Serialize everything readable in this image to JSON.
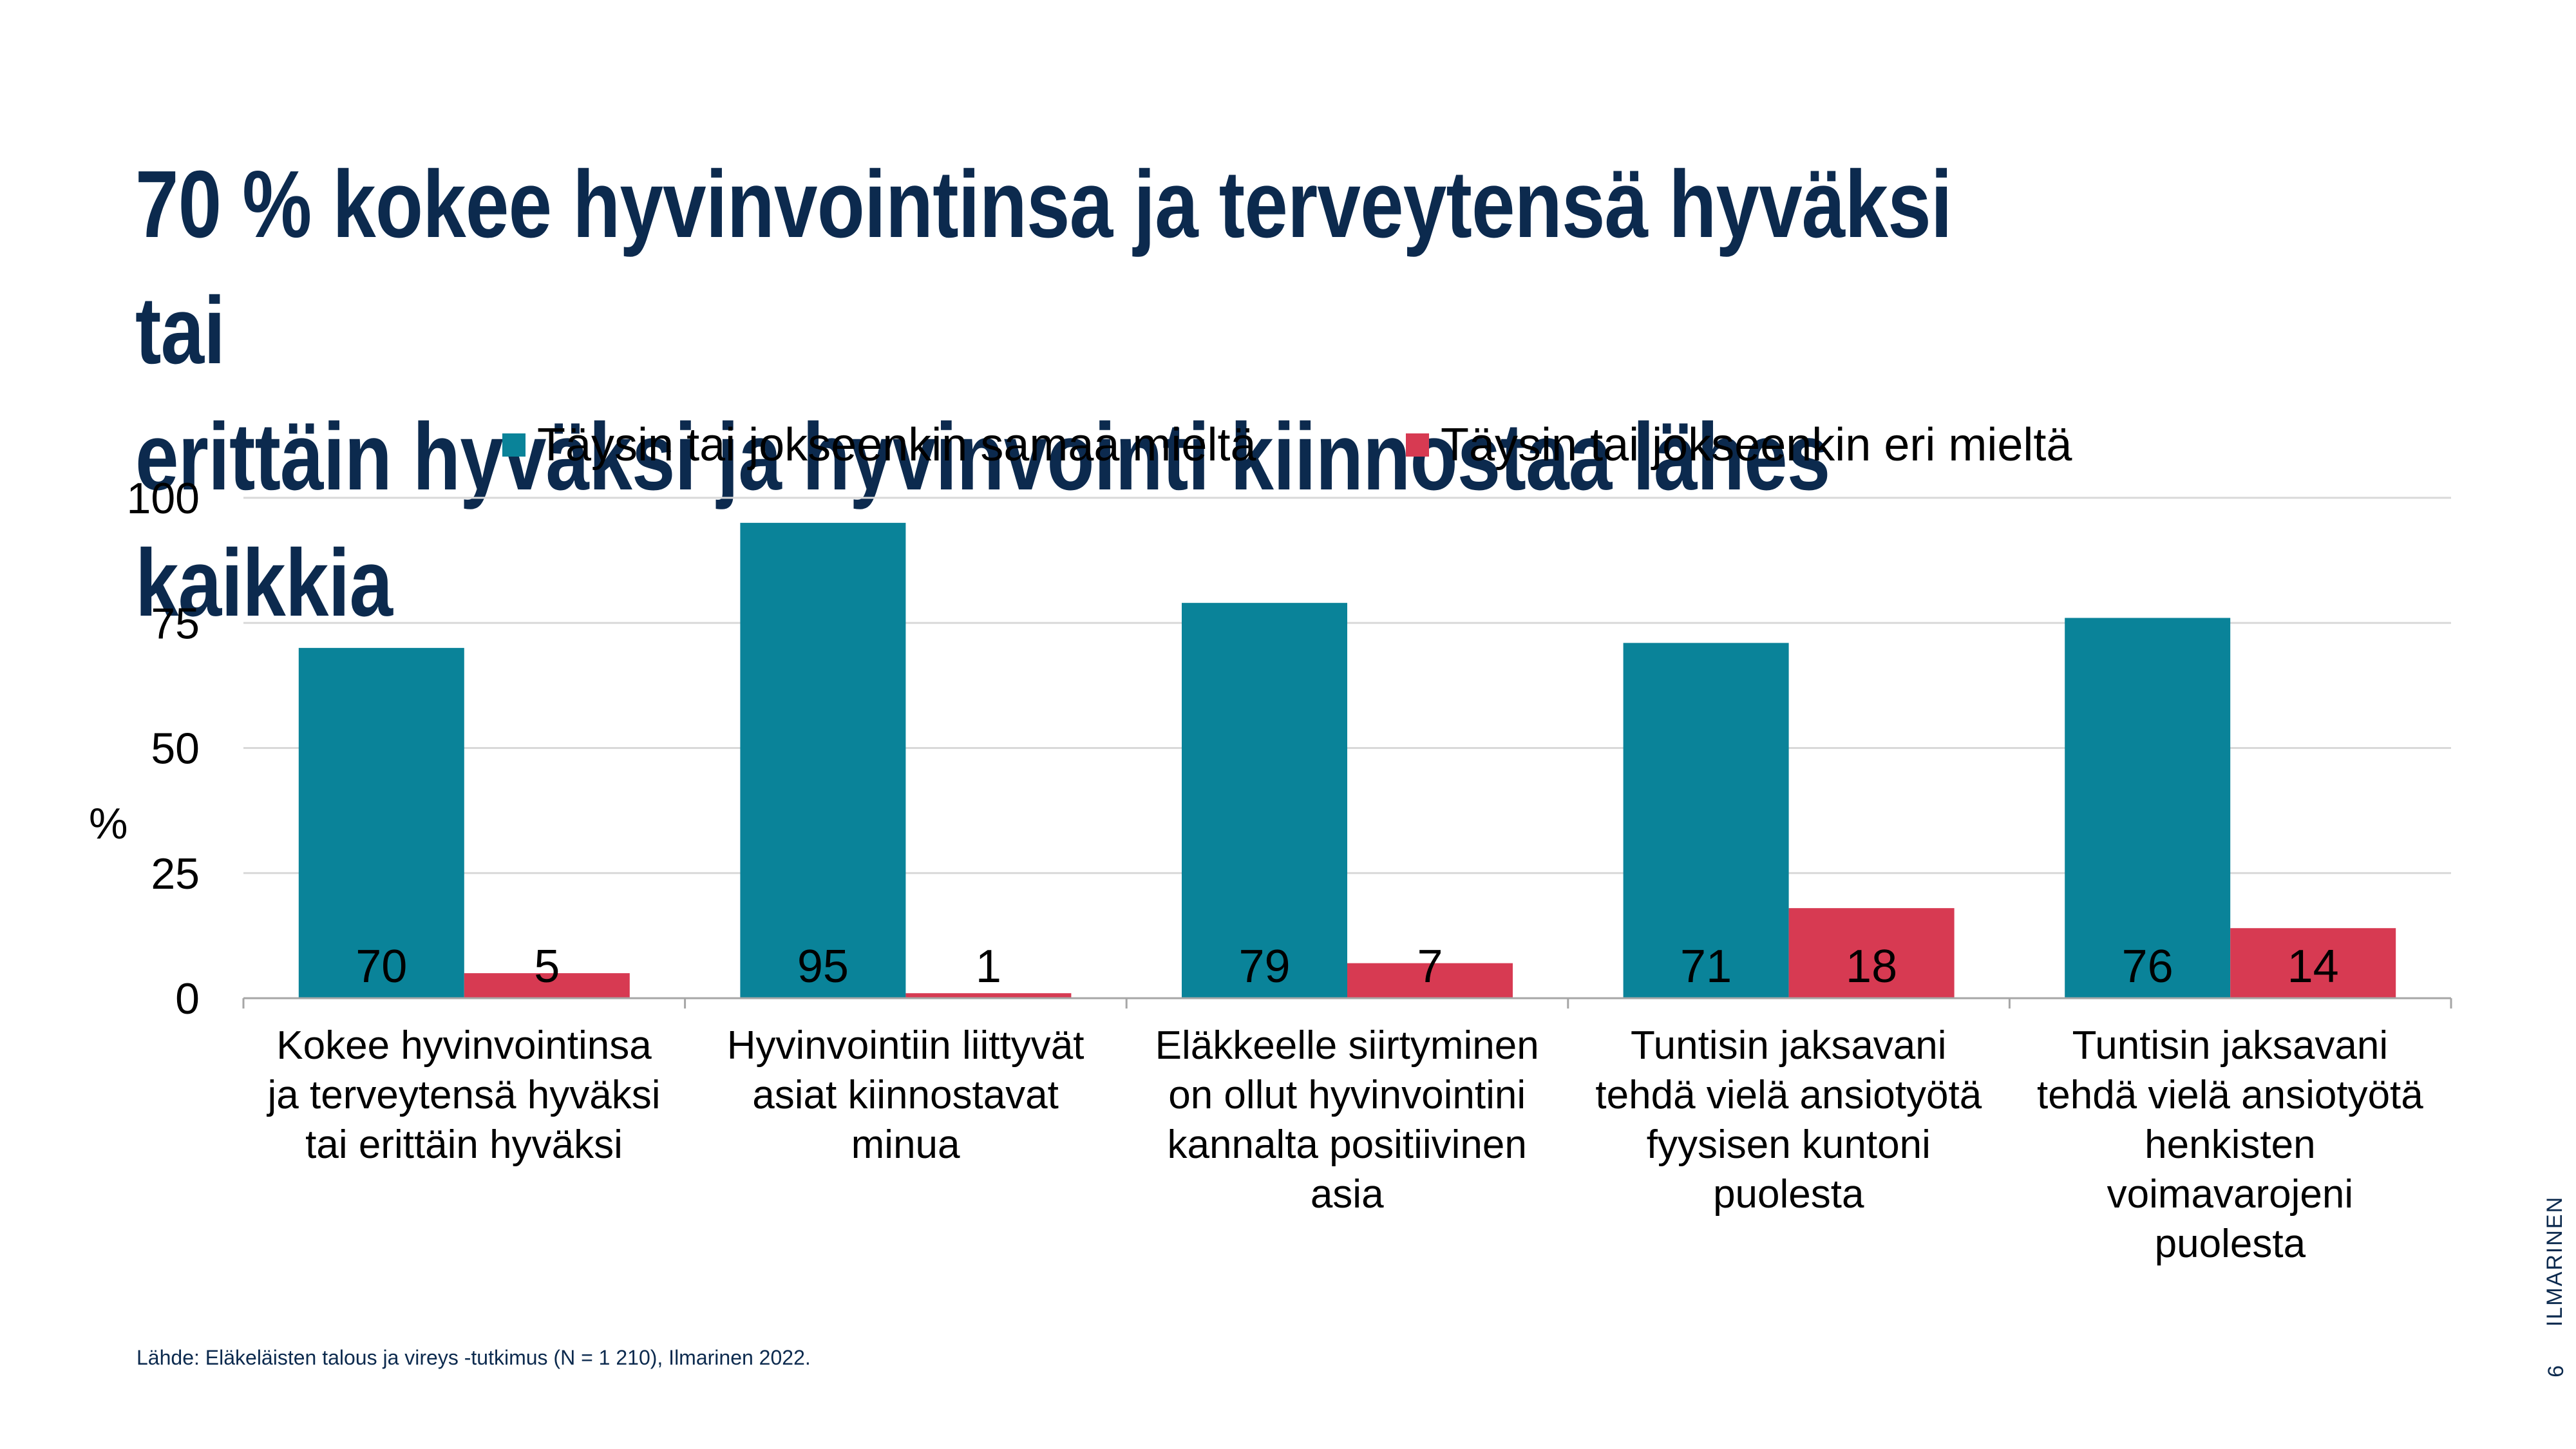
{
  "slide": {
    "title_line1": "70 % kokee hyvinvointinsa ja terveytensä hyväksi tai",
    "title_line2": "erittäin hyväksi ja hyvinvointi kiinnostaa lähes kaikkia",
    "source": "Lähde: Eläkeläisten talous ja vireys -tutkimus (N = 1 210), Ilmarinen 2022.",
    "brand": "ILMARINEN",
    "page_number": "6"
  },
  "colors": {
    "title": "#0c2a4e",
    "series_agree": "#0a8399",
    "series_disagree": "#d73a52",
    "grid": "#d9d9d9",
    "axis": "#a6a6a6"
  },
  "chart_data": {
    "type": "bar",
    "title": "",
    "xlabel": "",
    "ylabel": "%",
    "ylim": [
      0,
      100
    ],
    "yticks": [
      0,
      25,
      50,
      75,
      100
    ],
    "grid": true,
    "legend_position": "top",
    "categories": [
      "Kokee hyvinvointinsa ja terveytensä hyväksi tai erittäin hyväksi",
      "Hyvinvointiin liittyvät asiat kiinnostavat minua",
      "Eläkkeelle siirtyminen on ollut hyvinvointini kannalta positiivinen asia",
      "Tuntisin jaksavani tehdä vielä ansiotyötä fyysisen kuntoni puolesta",
      "Tuntisin jaksavani tehdä vielä ansiotyötä henkisten voimavarojeni puolesta"
    ],
    "category_lines": [
      [
        "Kokee hyvinvointinsa",
        "ja terveytensä hyväksi",
        "tai erittäin hyväksi"
      ],
      [
        "Hyvinvointiin liittyvät",
        "asiat kiinnostavat",
        "minua"
      ],
      [
        "Eläkkeelle siirtyminen",
        "on ollut hyvinvointini",
        "kannalta positiivinen",
        "asia"
      ],
      [
        "Tuntisin jaksavani",
        "tehdä vielä ansiotyötä",
        "fyysisen kuntoni",
        "puolesta"
      ],
      [
        "Tuntisin jaksavani",
        "tehdä vielä ansiotyötä",
        "henkisten",
        "voimavarojeni",
        "puolesta"
      ]
    ],
    "series": [
      {
        "name": "Täysin tai jokseenkin samaa mieltä",
        "color": "#0a8399",
        "values": [
          70,
          95,
          79,
          71,
          76
        ]
      },
      {
        "name": "Täysin tai jokseenkin eri mieltä",
        "color": "#d73a52",
        "values": [
          5,
          1,
          7,
          18,
          14
        ]
      }
    ]
  }
}
